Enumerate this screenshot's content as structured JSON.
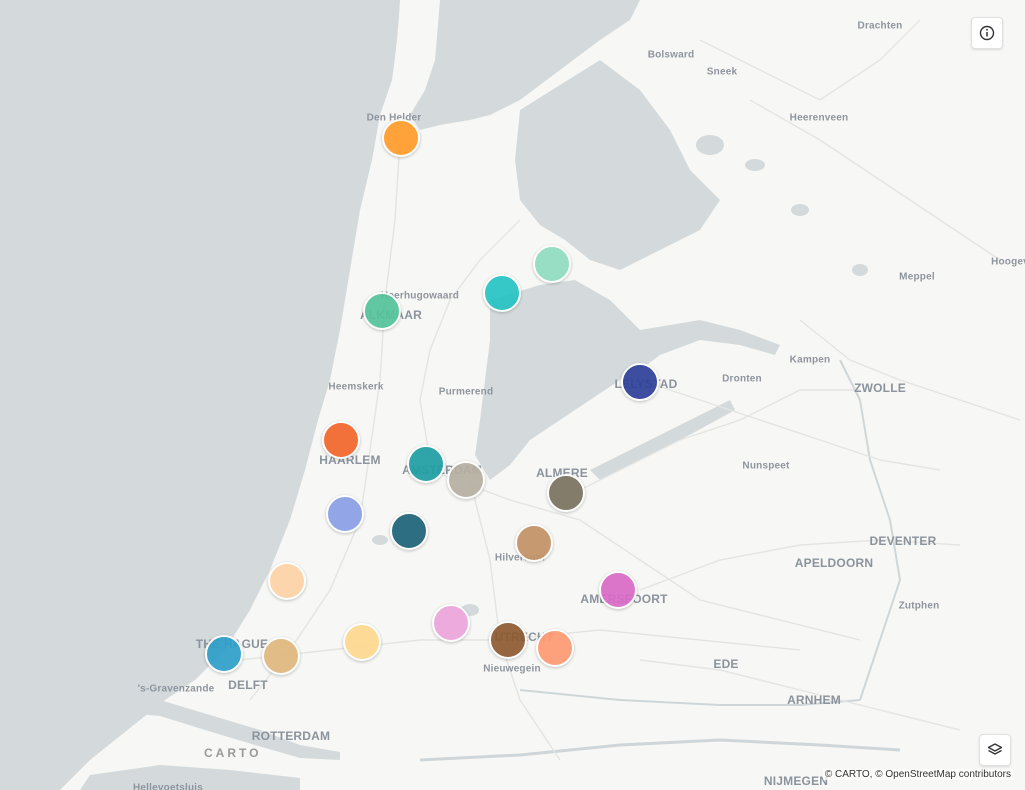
{
  "map": {
    "attribution": "© CARTO, © OpenStreetMap contributors",
    "logo": "CARTO",
    "land_color": "#f7f7f5",
    "water_color": "#d4dadc"
  },
  "controls": {
    "info": {
      "icon": "info-icon"
    },
    "layers": {
      "icon": "layers-icon"
    }
  },
  "cities": [
    {
      "name": "Drachten",
      "rank": "minor"
    },
    {
      "name": "Bolsward",
      "rank": "minor"
    },
    {
      "name": "Sneek",
      "rank": "minor"
    },
    {
      "name": "Heerenveen",
      "rank": "minor"
    },
    {
      "name": "Den Helder",
      "rank": "minor"
    },
    {
      "name": "Heerhugowaard",
      "rank": "minor"
    },
    {
      "name": "ALKMAAR",
      "rank": "major"
    },
    {
      "name": "Meppel",
      "rank": "minor"
    },
    {
      "name": "Hoogev",
      "rank": "minor"
    },
    {
      "name": "Kampen",
      "rank": "minor"
    },
    {
      "name": "Heemskerk",
      "rank": "minor"
    },
    {
      "name": "Purmerend",
      "rank": "minor"
    },
    {
      "name": "LELYSTAD",
      "rank": "major"
    },
    {
      "name": "Dronten",
      "rank": "minor"
    },
    {
      "name": "ZWOLLE",
      "rank": "major"
    },
    {
      "name": "HAARLEM",
      "rank": "major"
    },
    {
      "name": "AMSTERDAM",
      "rank": "major"
    },
    {
      "name": "ALMERE",
      "rank": "major"
    },
    {
      "name": "Nunspeet",
      "rank": "minor"
    },
    {
      "name": "Hilversum",
      "rank": "minor"
    },
    {
      "name": "DEVENTER",
      "rank": "major"
    },
    {
      "name": "APELDOORN",
      "rank": "major"
    },
    {
      "name": "AMERSFOORT",
      "rank": "major"
    },
    {
      "name": "Zutphen",
      "rank": "minor"
    },
    {
      "name": "THE HAGUE",
      "rank": "major"
    },
    {
      "name": "UTRECHT",
      "rank": "major"
    },
    {
      "name": "Nieuwegein",
      "rank": "minor"
    },
    {
      "name": "EDE",
      "rank": "major"
    },
    {
      "name": "DELFT",
      "rank": "major"
    },
    {
      "name": "'s-Gravenzande",
      "rank": "minor"
    },
    {
      "name": "ARNHEM",
      "rank": "major"
    },
    {
      "name": "ROTTERDAM",
      "rank": "major"
    },
    {
      "name": "NIJMEGEN",
      "rank": "major"
    },
    {
      "name": "Hellevoetsluis",
      "rank": "minor"
    }
  ],
  "markers": [
    {
      "color": "#ff9b2a"
    },
    {
      "color": "#8fdcc0"
    },
    {
      "color": "#26c3c4"
    },
    {
      "color": "#54c39b"
    },
    {
      "color": "#2e3f99"
    },
    {
      "color": "#f2652a"
    },
    {
      "color": "#1f9fa3"
    },
    {
      "color": "#b6b0a2"
    },
    {
      "color": "#7b7260"
    },
    {
      "color": "#8aa0e6"
    },
    {
      "color": "#1d637a"
    },
    {
      "color": "#c29266"
    },
    {
      "color": "#fed3a6"
    },
    {
      "color": "#d86bc7"
    },
    {
      "color": "#eda5dc"
    },
    {
      "color": "#fed98e"
    },
    {
      "color": "#8d5a30"
    },
    {
      "color": "#fe9a73"
    },
    {
      "color": "#2f9fc9"
    },
    {
      "color": "#e0b87d"
    }
  ]
}
